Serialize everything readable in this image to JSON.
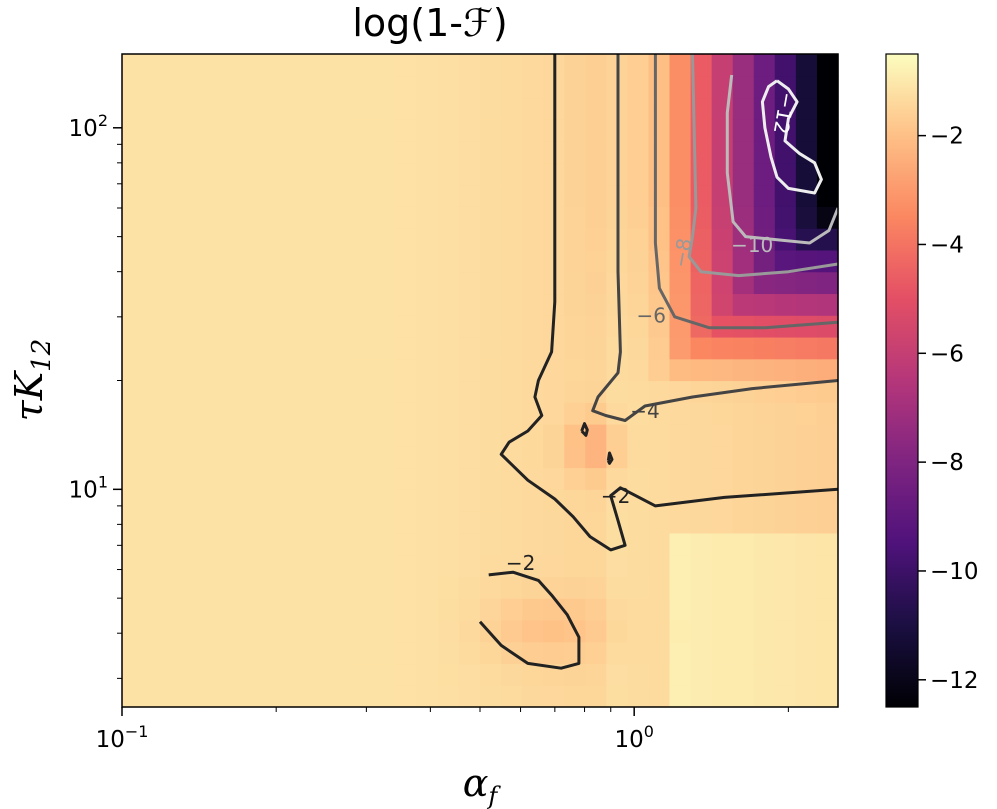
{
  "chart_data": {
    "type": "heatmap",
    "title": "log(1-ℱ)",
    "xlabel": "α",
    "xlabel_sub": "f",
    "ylabel": "τK",
    "ylabel_sub": "12",
    "xscale": "log",
    "yscale": "log",
    "xlim": [
      0.1,
      2.5
    ],
    "ylim": [
      2.5,
      160
    ],
    "x_ticks": [
      {
        "value": 0.1,
        "base": "10",
        "exp": "−1"
      },
      {
        "value": 1,
        "base": "10",
        "exp": "0"
      }
    ],
    "y_ticks": [
      {
        "value": 10,
        "base": "10",
        "exp": "1"
      },
      {
        "value": 100,
        "base": "10",
        "exp": "2"
      }
    ],
    "colormap": "magma",
    "color_range": [
      -12.5,
      -0.5
    ],
    "colorbar_ticks": [
      {
        "value": -2,
        "label": "−2"
      },
      {
        "value": -4,
        "label": "−4"
      },
      {
        "value": -6,
        "label": "−6"
      },
      {
        "value": -8,
        "label": "−8"
      },
      {
        "value": -10,
        "label": "−10"
      },
      {
        "value": -12,
        "label": "−12"
      }
    ],
    "grid": {
      "nx": 34,
      "ny": 30
    },
    "contours": [
      {
        "level": -2,
        "label": "−2",
        "color": "#222222",
        "points": [
          [
            0.7,
            160
          ],
          [
            0.7,
            33
          ],
          [
            0.69,
            24
          ],
          [
            0.65,
            20
          ],
          [
            0.64,
            18
          ],
          [
            0.66,
            16
          ],
          [
            0.62,
            14.5
          ],
          [
            0.57,
            13.5
          ],
          [
            0.55,
            12.5
          ],
          [
            0.62,
            10.6
          ],
          [
            0.7,
            9.4
          ],
          [
            0.76,
            8.4
          ],
          [
            0.82,
            7.4
          ],
          [
            0.9,
            6.8
          ],
          [
            0.96,
            7.0
          ],
          [
            0.93,
            8.2
          ],
          [
            0.9,
            9.6
          ],
          [
            0.94,
            10.1
          ],
          [
            1.1,
            9.0
          ],
          [
            1.5,
            9.5
          ],
          [
            2.5,
            10.0
          ]
        ]
      },
      {
        "level": -2,
        "label": "−2",
        "color": "#222222",
        "points": [
          [
            0.5,
            4.3
          ],
          [
            0.55,
            3.7
          ],
          [
            0.62,
            3.3
          ],
          [
            0.72,
            3.2
          ],
          [
            0.78,
            3.3
          ],
          [
            0.78,
            3.9
          ],
          [
            0.74,
            4.5
          ],
          [
            0.69,
            5.1
          ],
          [
            0.65,
            5.6
          ],
          [
            0.58,
            5.9
          ],
          [
            0.52,
            5.8
          ]
        ]
      },
      {
        "level": -4,
        "label": "−4",
        "color": "#444444",
        "points": [
          [
            0.93,
            160
          ],
          [
            0.93,
            40
          ],
          [
            0.94,
            24
          ],
          [
            0.93,
            21
          ],
          [
            0.85,
            18
          ],
          [
            0.83,
            16.5
          ],
          [
            0.88,
            16
          ],
          [
            0.96,
            15.5
          ],
          [
            1.05,
            17
          ],
          [
            1.3,
            18
          ],
          [
            1.7,
            19
          ],
          [
            2.5,
            20
          ]
        ]
      },
      {
        "level": -6,
        "label": "−6",
        "color": "#666666",
        "points": [
          [
            1.1,
            160
          ],
          [
            1.1,
            48
          ],
          [
            1.12,
            36
          ],
          [
            1.2,
            30
          ],
          [
            1.4,
            28
          ],
          [
            1.8,
            28
          ],
          [
            2.5,
            29
          ]
        ]
      },
      {
        "level": -8,
        "label": "−8",
        "color": "#999999",
        "points": [
          [
            1.3,
            160
          ],
          [
            1.32,
            60
          ],
          [
            1.3,
            50
          ],
          [
            1.28,
            44
          ],
          [
            1.35,
            40
          ],
          [
            1.6,
            39
          ],
          [
            2.0,
            40
          ],
          [
            2.5,
            42
          ]
        ]
      },
      {
        "level": -10,
        "label": "−10",
        "color": "#bbbbbb",
        "points": [
          [
            1.55,
            140
          ],
          [
            1.52,
            110
          ],
          [
            1.52,
            75
          ],
          [
            1.56,
            55
          ],
          [
            1.65,
            50
          ],
          [
            1.9,
            49
          ],
          [
            2.2,
            48
          ],
          [
            2.4,
            52
          ],
          [
            2.5,
            60
          ]
        ]
      },
      {
        "level": -12,
        "label": "−12",
        "color": "#eeeeee",
        "points": [
          [
            1.9,
            135
          ],
          [
            2.0,
            128
          ],
          [
            2.08,
            118
          ],
          [
            2.0,
            106
          ],
          [
            1.97,
            92
          ],
          [
            2.1,
            85
          ],
          [
            2.25,
            80
          ],
          [
            2.32,
            72
          ],
          [
            2.25,
            66
          ],
          [
            2.0,
            68
          ],
          [
            1.9,
            73
          ],
          [
            1.85,
            83
          ],
          [
            1.8,
            100
          ],
          [
            1.78,
            118
          ],
          [
            1.83,
            130
          ],
          [
            1.9,
            135
          ]
        ]
      },
      {
        "level": -2,
        "label": "",
        "color": "#222222",
        "points": [
          [
            0.79,
            14.5
          ],
          [
            0.8,
            15.2
          ],
          [
            0.81,
            14.6
          ],
          [
            0.805,
            14.1
          ],
          [
            0.79,
            14.5
          ]
        ]
      },
      {
        "level": -2,
        "label": "",
        "color": "#222222",
        "points": [
          [
            0.89,
            12.0
          ],
          [
            0.895,
            12.6
          ],
          [
            0.905,
            12.1
          ],
          [
            0.895,
            11.8
          ],
          [
            0.89,
            12.0
          ]
        ]
      }
    ]
  }
}
